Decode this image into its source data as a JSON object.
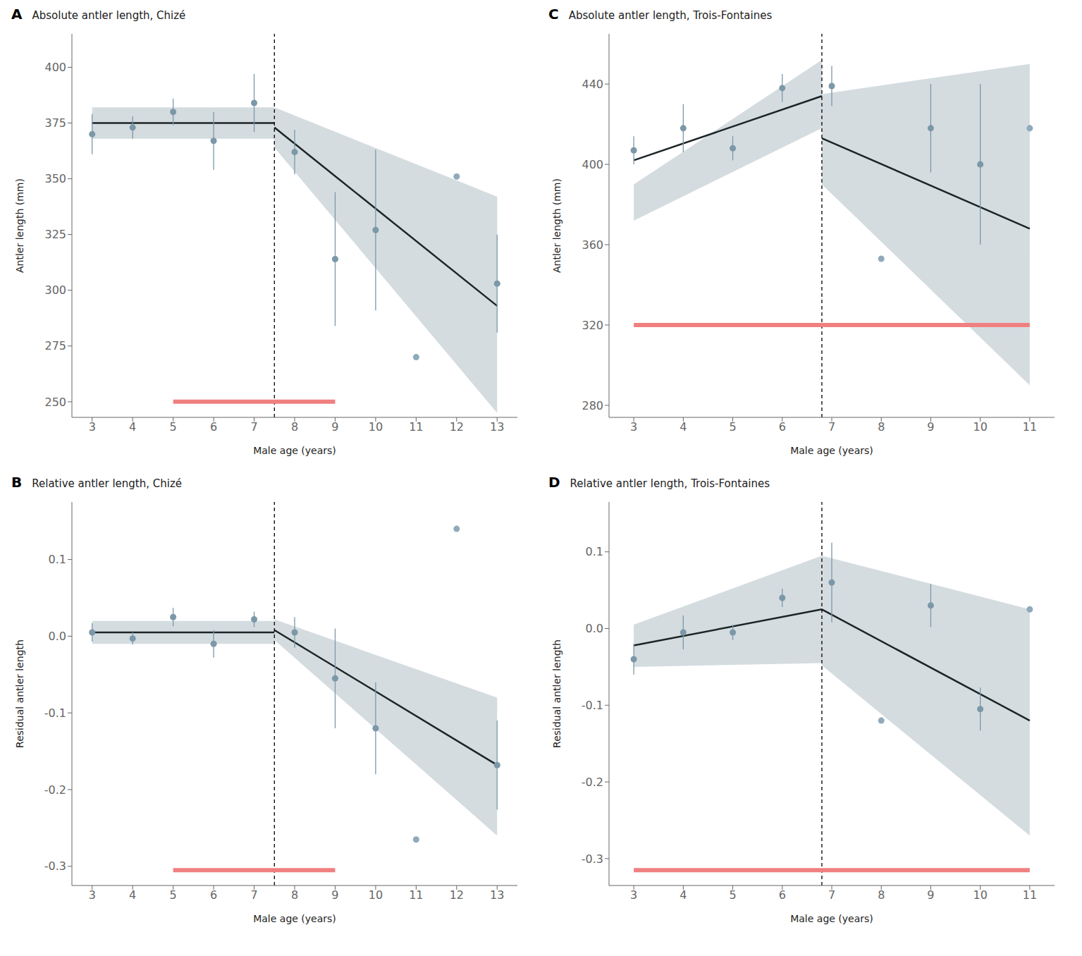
{
  "chart_data": [
    {
      "type": "scatter",
      "label": "A",
      "title": "Absolute antler length, Chizé",
      "xlabel": "Male age (years)",
      "ylabel": "Antler length (mm)",
      "xlim": [
        2.5,
        13.5
      ],
      "ylim": [
        243,
        415
      ],
      "xticks": [
        3,
        4,
        5,
        6,
        7,
        8,
        9,
        10,
        11,
        12,
        13
      ],
      "yticks": [
        250,
        275,
        300,
        325,
        350,
        375,
        400
      ],
      "grid": false,
      "series": [
        {
          "type": "area",
          "color": "#c5d0d5",
          "x": [
            3.0,
            7.5
          ],
          "lower": [
            368,
            368
          ],
          "upper": [
            382,
            382
          ]
        },
        {
          "type": "area",
          "color": "#c5d0d5",
          "x": [
            7.5,
            13.0
          ],
          "lower": [
            364,
            245
          ],
          "upper": [
            382,
            342
          ]
        },
        {
          "type": "line",
          "color": "#1c2526",
          "x": [
            3.0,
            7.5
          ],
          "values": [
            375,
            375
          ]
        },
        {
          "type": "line",
          "color": "#1c2526",
          "x": [
            7.5,
            13.0
          ],
          "values": [
            373,
            293
          ]
        },
        {
          "type": "vline",
          "color": "#000000",
          "line_style": "dashed",
          "x": 7.5
        },
        {
          "type": "line",
          "color": "#f08080",
          "x": [
            5.0,
            9.0
          ],
          "values": [
            250,
            250
          ]
        },
        {
          "type": "scatter",
          "x": [
            3,
            4,
            5,
            6,
            7,
            8,
            9,
            10,
            11,
            12,
            13
          ],
          "values": [
            370,
            373,
            380,
            367,
            384,
            362,
            314,
            327,
            270,
            351,
            303
          ],
          "error_lo": [
            9,
            5,
            6,
            13,
            13,
            10,
            30,
            36,
            0,
            0,
            22
          ],
          "error_hi": [
            9,
            5,
            6,
            13,
            13,
            10,
            30,
            36,
            0,
            0,
            22
          ],
          "colors": [
            "#7b98a8",
            "#7b98a8",
            "#7b98a8",
            "#7b98a8",
            "#7b98a8",
            "#7b98a8",
            "#7b98a8",
            "#7b98a8",
            "#8faabb",
            "#8faabb",
            "#7b98a8"
          ]
        }
      ]
    },
    {
      "type": "scatter",
      "label": "C",
      "title": "Absolute antler length, Trois-Fontaines",
      "xlabel": "Male age (years)",
      "ylabel": "Antler length (mm)",
      "xlim": [
        2.5,
        11.5
      ],
      "ylim": [
        274,
        465
      ],
      "xticks": [
        3,
        4,
        5,
        6,
        7,
        8,
        9,
        10,
        11
      ],
      "yticks": [
        280,
        320,
        360,
        400,
        440
      ],
      "grid": false,
      "series": [
        {
          "type": "area",
          "color": "#c5d0d5",
          "x": [
            3.0,
            6.8
          ],
          "lower": [
            372,
            418
          ],
          "upper": [
            390,
            452
          ]
        },
        {
          "type": "area",
          "color": "#c5d0d5",
          "x": [
            6.8,
            11.0
          ],
          "lower": [
            390,
            290
          ],
          "upper": [
            435,
            450
          ]
        },
        {
          "type": "line",
          "color": "#1c2526",
          "x": [
            3.0,
            6.8
          ],
          "values": [
            402,
            434
          ]
        },
        {
          "type": "line",
          "color": "#1c2526",
          "x": [
            6.8,
            11.0
          ],
          "values": [
            413,
            368
          ]
        },
        {
          "type": "vline",
          "color": "#000000",
          "line_style": "dashed",
          "x": 6.8
        },
        {
          "type": "line",
          "color": "#f08080",
          "x": [
            3.0,
            11.0
          ],
          "values": [
            320,
            320
          ]
        },
        {
          "type": "scatter",
          "x": [
            3,
            4,
            5,
            6,
            7,
            8,
            9,
            10,
            11
          ],
          "values": [
            407,
            418,
            408,
            438,
            439,
            353,
            418,
            400,
            418
          ],
          "error_lo": [
            7,
            12,
            6,
            7,
            10,
            0,
            22,
            40,
            0
          ],
          "error_hi": [
            7,
            12,
            6,
            7,
            10,
            0,
            22,
            40,
            0
          ],
          "colors": [
            "#7b98a8",
            "#7b98a8",
            "#7b98a8",
            "#7b98a8",
            "#7b98a8",
            "#8faabb",
            "#7b98a8",
            "#7b98a8",
            "#8faabb"
          ]
        }
      ]
    },
    {
      "type": "scatter",
      "label": "B",
      "title": "Relative antler length, Chizé",
      "xlabel": "Male age (years)",
      "ylabel": "Residual antler length",
      "xlim": [
        2.5,
        13.5
      ],
      "ylim": [
        -0.325,
        0.175
      ],
      "xticks": [
        3,
        4,
        5,
        6,
        7,
        8,
        9,
        10,
        11,
        12,
        13
      ],
      "yticks": [
        -0.3,
        -0.2,
        -0.1,
        {
          "value": 0.0,
          "label": "0.0"
        },
        0.1
      ],
      "grid": false,
      "series": [
        {
          "type": "area",
          "color": "#c5d0d5",
          "x": [
            3.0,
            7.5
          ],
          "lower": [
            -0.01,
            -0.01
          ],
          "upper": [
            0.02,
            0.02
          ]
        },
        {
          "type": "area",
          "color": "#c5d0d5",
          "x": [
            7.5,
            13.0
          ],
          "lower": [
            -0.005,
            -0.26
          ],
          "upper": [
            0.022,
            -0.08
          ]
        },
        {
          "type": "line",
          "color": "#1c2526",
          "x": [
            3.0,
            7.5
          ],
          "values": [
            0.005,
            0.005
          ]
        },
        {
          "type": "line",
          "color": "#1c2526",
          "x": [
            7.5,
            13.0
          ],
          "values": [
            0.008,
            -0.168
          ]
        },
        {
          "type": "vline",
          "color": "#000000",
          "line_style": "dashed",
          "x": 7.5
        },
        {
          "type": "line",
          "color": "#f08080",
          "x": [
            5.0,
            9.0
          ],
          "values": [
            -0.305,
            -0.305
          ]
        },
        {
          "type": "scatter",
          "x": [
            3,
            4,
            5,
            6,
            7,
            8,
            9,
            10,
            11,
            12,
            13
          ],
          "values": [
            0.005,
            -0.003,
            0.025,
            -0.01,
            0.022,
            0.005,
            -0.055,
            -0.12,
            -0.265,
            0.14,
            -0.168
          ],
          "error_lo": [
            0.012,
            0.008,
            0.012,
            0.018,
            0.01,
            0.02,
            0.065,
            0.06,
            0,
            0,
            0.058
          ],
          "error_hi": [
            0.012,
            0.008,
            0.012,
            0.018,
            0.01,
            0.02,
            0.065,
            0.06,
            0,
            0,
            0.058
          ],
          "colors": [
            "#7b98a8",
            "#7b98a8",
            "#7b98a8",
            "#7b98a8",
            "#7b98a8",
            "#7b98a8",
            "#7b98a8",
            "#7b98a8",
            "#8faabb",
            "#8faabb",
            "#7b98a8"
          ]
        }
      ]
    },
    {
      "type": "scatter",
      "label": "D",
      "title": "Relative antler length, Trois-Fontaines",
      "xlabel": "Male age (years)",
      "ylabel": "Residual antler length",
      "xlim": [
        2.5,
        11.5
      ],
      "ylim": [
        -0.335,
        0.165
      ],
      "xticks": [
        3,
        4,
        5,
        6,
        7,
        8,
        9,
        10,
        11
      ],
      "yticks": [
        -0.3,
        -0.2,
        -0.1,
        {
          "value": 0.0,
          "label": "0.0"
        },
        0.1
      ],
      "grid": false,
      "series": [
        {
          "type": "area",
          "color": "#c5d0d5",
          "x": [
            3.0,
            6.8
          ],
          "lower": [
            -0.05,
            -0.045
          ],
          "upper": [
            0.005,
            0.095
          ]
        },
        {
          "type": "area",
          "color": "#c5d0d5",
          "x": [
            6.8,
            11.0
          ],
          "lower": [
            -0.048,
            -0.27
          ],
          "upper": [
            0.095,
            0.025
          ]
        },
        {
          "type": "line",
          "color": "#1c2526",
          "x": [
            3.0,
            6.8
          ],
          "values": [
            -0.022,
            0.025
          ]
        },
        {
          "type": "line",
          "color": "#1c2526",
          "x": [
            6.8,
            11.0
          ],
          "values": [
            0.025,
            -0.12
          ]
        },
        {
          "type": "vline",
          "color": "#000000",
          "line_style": "dashed",
          "x": 6.8
        },
        {
          "type": "line",
          "color": "#f08080",
          "x": [
            3.0,
            11.0
          ],
          "values": [
            -0.315,
            -0.315
          ]
        },
        {
          "type": "scatter",
          "x": [
            3,
            4,
            5,
            6,
            7,
            8,
            9,
            10,
            11
          ],
          "values": [
            -0.04,
            -0.005,
            -0.005,
            0.04,
            0.06,
            -0.12,
            0.03,
            -0.105,
            0.025
          ],
          "error_lo": [
            0.02,
            0.022,
            0.01,
            0.012,
            0.052,
            0,
            0.028,
            0.028,
            0
          ],
          "error_hi": [
            0.02,
            0.022,
            0.01,
            0.012,
            0.052,
            0,
            0.028,
            0.028,
            0
          ],
          "colors": [
            "#7b98a8",
            "#7b98a8",
            "#7b98a8",
            "#7b98a8",
            "#7b98a8",
            "#8faabb",
            "#7b98a8",
            "#7b98a8",
            "#8faabb"
          ]
        }
      ]
    }
  ]
}
